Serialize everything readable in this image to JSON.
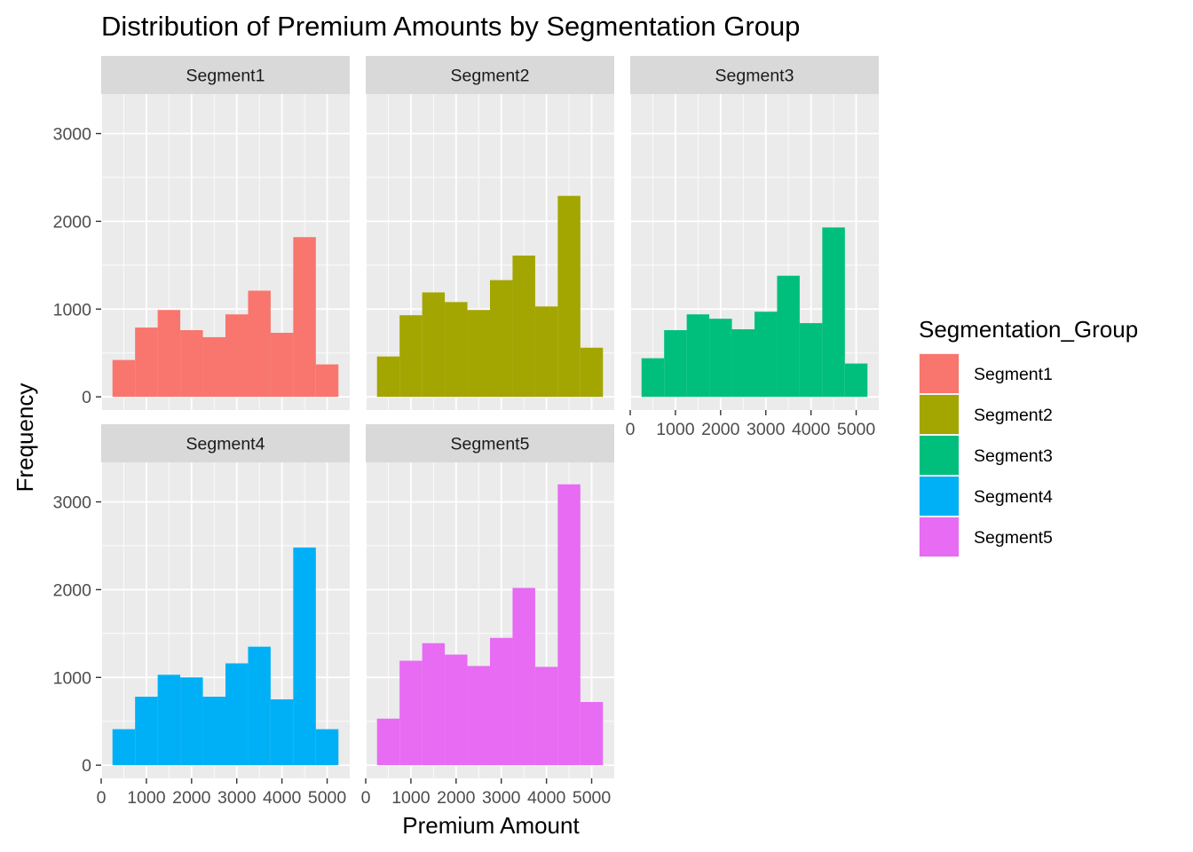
{
  "chart_data": {
    "type": "bar",
    "title": "Distribution of Premium Amounts by Segmentation Group",
    "xlabel": "Premium Amount",
    "ylabel": "Frequency",
    "xlim": [
      0,
      5500
    ],
    "ylim": [
      -150,
      3450
    ],
    "x_ticks": [
      0,
      1000,
      2000,
      3000,
      4000,
      5000
    ],
    "x_tick_labels": [
      "0",
      "1000",
      "2000",
      "3000",
      "4000",
      "5000"
    ],
    "y_ticks": [
      0,
      1000,
      2000,
      3000
    ],
    "y_tick_labels": [
      "0",
      "1000",
      "2000",
      "3000"
    ],
    "bin_edges": [
      250,
      750,
      1250,
      1750,
      2250,
      2750,
      3250,
      3750,
      4250,
      4750,
      5250
    ],
    "grid": true,
    "legend": {
      "title": "Segmentation_Group",
      "position": "right"
    },
    "facets": [
      {
        "name": "Segment1",
        "color": "#F8766D",
        "values": [
          420,
          790,
          990,
          760,
          680,
          940,
          1210,
          730,
          1820,
          370
        ]
      },
      {
        "name": "Segment2",
        "color": "#A3A500",
        "values": [
          460,
          930,
          1190,
          1080,
          990,
          1330,
          1610,
          1030,
          2290,
          560
        ]
      },
      {
        "name": "Segment3",
        "color": "#00BF7D",
        "values": [
          440,
          760,
          940,
          890,
          770,
          970,
          1380,
          840,
          1930,
          380
        ]
      },
      {
        "name": "Segment4",
        "color": "#00B0F6",
        "values": [
          410,
          780,
          1030,
          1000,
          780,
          1160,
          1350,
          750,
          2480,
          410
        ]
      },
      {
        "name": "Segment5",
        "color": "#E76BF3",
        "values": [
          530,
          1190,
          1390,
          1260,
          1130,
          1450,
          2020,
          1120,
          3200,
          720
        ]
      }
    ]
  }
}
